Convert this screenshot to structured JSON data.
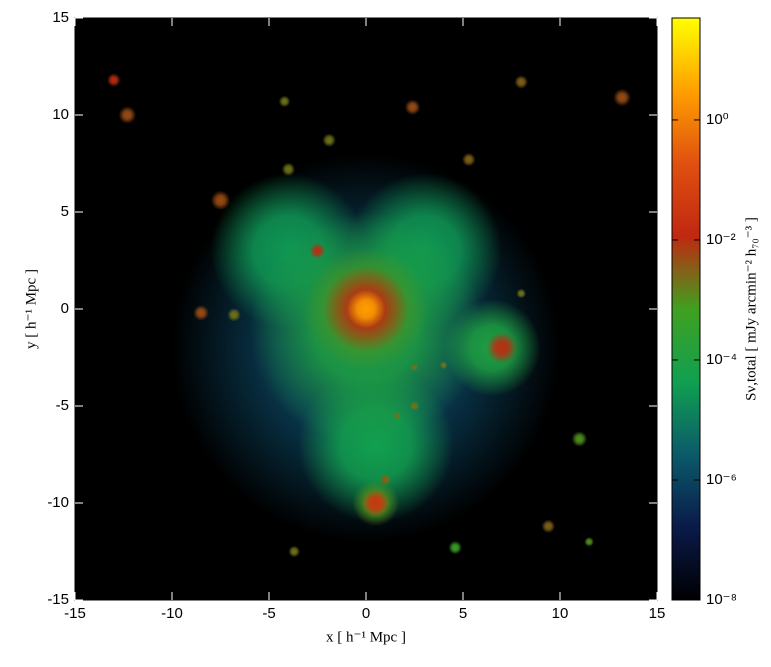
{
  "chart_data": {
    "type": "heatmap",
    "xlabel": "x [ h⁻¹ Mpc ]",
    "ylabel": "y [ h⁻¹ Mpc ]",
    "colorbar_label": "Sν,total [ mJy arcmin⁻² h₇₀⁻³ ]",
    "xlim": [
      -15,
      15
    ],
    "ylim": [
      -15,
      15
    ],
    "xticks": [
      -15,
      -10,
      -5,
      0,
      5,
      10,
      15
    ],
    "yticks": [
      -15,
      -10,
      -5,
      0,
      5,
      10,
      15
    ],
    "clim": [
      1e-08,
      50
    ],
    "cscale": "log",
    "cticks": [
      {
        "value": 1e-08,
        "label": "10⁻⁸"
      },
      {
        "value": 1e-06,
        "label": "10⁻⁶"
      },
      {
        "value": 0.0001,
        "label": "10⁻⁴"
      },
      {
        "value": 0.01,
        "label": "10⁻²"
      },
      {
        "value": 1,
        "label": "10⁰"
      }
    ],
    "colormap": [
      "#000000",
      "#0a1a4a",
      "#0b5a6a",
      "#10a050",
      "#40a020",
      "#c02810",
      "#e05010",
      "#ffa000",
      "#ffff00"
    ],
    "background": "#000000",
    "x": [
      0,
      -4,
      3,
      0.5,
      0,
      6.5,
      4.6,
      0,
      0.5,
      11,
      11.5,
      -6.8,
      -1.9,
      -4,
      -4.2,
      -3.7,
      8,
      2.5,
      4,
      2.5,
      1.6,
      8,
      5.3,
      9.4,
      1,
      -12.3,
      -7.5,
      -8.5,
      2.4,
      13.2,
      0,
      7,
      -2.5,
      -13,
      0.5,
      0
    ],
    "y": [
      -2,
      3,
      3,
      -7,
      -1,
      -2,
      -12.3,
      0,
      -10,
      -6.7,
      -12,
      -0.3,
      8.7,
      7.2,
      10.7,
      -12.5,
      0.8,
      -3,
      -2.9,
      -5,
      -5.5,
      11.7,
      7.7,
      -11.2,
      -8.8,
      10,
      5.6,
      -0.2,
      10.4,
      10.9,
      0,
      -2,
      3,
      11.8,
      -10,
      0
    ],
    "values": [
      1e-06,
      3e-05,
      3e-05,
      5e-05,
      0.0001,
      0.0001,
      0.0005,
      0.001,
      0.001,
      0.001,
      0.001,
      0.002,
      0.002,
      0.002,
      0.002,
      0.002,
      0.002,
      0.002,
      0.002,
      0.002,
      0.002,
      0.003,
      0.003,
      0.003,
      0.003,
      0.005,
      0.005,
      0.005,
      0.005,
      0.005,
      0.01,
      0.01,
      0.01,
      0.01,
      0.03,
      3
    ],
    "radius": [
      10,
      4,
      4,
      4,
      6,
      2.5,
      0.35,
      3.2,
      1.2,
      0.4,
      0.25,
      0.35,
      0.35,
      0.35,
      0.3,
      0.3,
      0.25,
      0.2,
      0.2,
      0.25,
      0.2,
      0.35,
      0.35,
      0.35,
      0.3,
      0.45,
      0.5,
      0.4,
      0.4,
      0.45,
      2.2,
      0.8,
      0.4,
      0.35,
      0.7,
      1
    ]
  }
}
